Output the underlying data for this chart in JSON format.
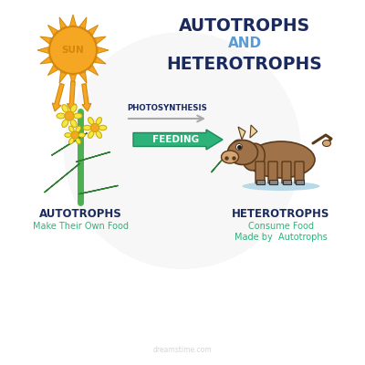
{
  "title_line1": "AUTOTROPHS",
  "title_and": "AND",
  "title_line2": "HETEROTROPHS",
  "title_color": "#1a2a5e",
  "title_and_color": "#5b9bd5",
  "sun_label": "SUN",
  "sun_color": "#f5a623",
  "sun_outline": "#d4870a",
  "arrow_color": "#f5a623",
  "arrow_outline": "#d4870a",
  "photosynthesis_label": "PHOTOSYNTHESIS",
  "photosynthesis_color": "#1a2a5e",
  "feeding_label": "FEEDING",
  "feeding_arrow_color": "#2db37a",
  "feeding_text_color": "#ffffff",
  "autotrophs_label": "AUTOTROPHS",
  "autotrophs_sub": "Make Their Own Food",
  "autotrophs_label_color": "#1a2a5e",
  "autotrophs_sub_color": "#2db37a",
  "heterotrophs_label": "HETEROTROPHS",
  "heterotrophs_sub1": "Consume Food",
  "heterotrophs_sub2": "Made by  Autotrophs",
  "heterotrophs_label_color": "#1a2a5e",
  "heterotrophs_sub_color": "#2db37a",
  "plant_green": "#4caf50",
  "plant_green_dark": "#2e7d32",
  "flower_petal": "#f5e642",
  "flower_center": "#f5a623",
  "flower_outline": "#c8a800",
  "cow_body": "#a0724a",
  "cow_light": "#d4a574",
  "cow_outline": "#5a3a1a",
  "cow_shadow": "#b8d9e8",
  "cow_horn": "#e8d5a0",
  "cow_hoof": "#888888",
  "background": "#ffffff",
  "watermark_color": "#bbbbbb",
  "photosynthesis_arrow_color": "#aaaaaa",
  "gray_circle_color": "#e0e0e0"
}
